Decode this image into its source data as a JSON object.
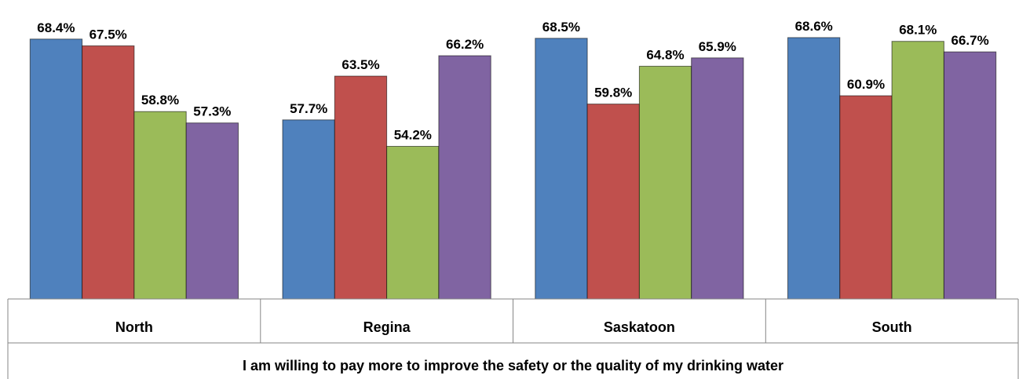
{
  "chart_data": {
    "type": "bar",
    "categories": [
      "North",
      "Regina",
      "Saskatoon",
      "South"
    ],
    "group_label": "I am willing to pay more to improve the safety or the quality of my drinking water",
    "series": [
      {
        "values": [
          68.4,
          57.7,
          68.5,
          68.6
        ],
        "color": "#4F81BD"
      },
      {
        "values": [
          67.5,
          63.5,
          59.8,
          60.9
        ],
        "color": "#C0504D"
      },
      {
        "values": [
          58.8,
          54.2,
          64.8,
          68.1
        ],
        "color": "#9BBB59"
      },
      {
        "values": [
          57.3,
          66.2,
          65.9,
          66.7
        ],
        "color": "#8064A2"
      }
    ],
    "labels": [
      [
        "68.4%",
        "57.7%",
        "68.5%",
        "68.6%"
      ],
      [
        "67.5%",
        "63.5%",
        "59.8%",
        "60.9%"
      ],
      [
        "58.8%",
        "54.2%",
        "64.8%",
        "68.1%"
      ],
      [
        "57.3%",
        "66.2%",
        "65.9%",
        "66.7%"
      ]
    ],
    "ylim": [
      34,
      69
    ],
    "grid": false,
    "legend": "none"
  }
}
